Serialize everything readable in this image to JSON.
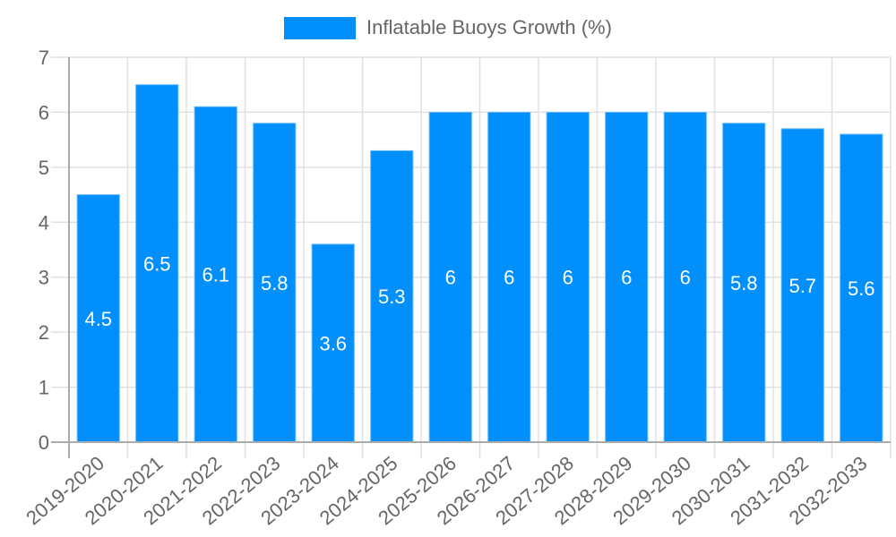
{
  "chart_data": {
    "type": "bar",
    "title": "",
    "xlabel": "",
    "ylabel": "",
    "ylim": [
      0,
      7
    ],
    "yticks": [
      0,
      1,
      2,
      3,
      4,
      5,
      6,
      7
    ],
    "grid": true,
    "legend_position": "top",
    "categories": [
      "2019-2020",
      "2020-2021",
      "2021-2022",
      "2022-2023",
      "2023-2024",
      "2024-2025",
      "2025-2026",
      "2026-2027",
      "2027-2028",
      "2028-2029",
      "2029-2030",
      "2030-2031",
      "2031-2032",
      "2032-2033"
    ],
    "series": [
      {
        "name": "Inflatable Buoys Growth (%)",
        "color": "#008ffb",
        "values": [
          4.5,
          6.5,
          6.1,
          5.8,
          3.6,
          5.3,
          6,
          6,
          6,
          6,
          6,
          5.8,
          5.7,
          5.6
        ],
        "data_labels": [
          "4.5",
          "6.5",
          "6.1",
          "5.8",
          "3.6",
          "5.3",
          "6",
          "6",
          "6",
          "6",
          "6",
          "5.8",
          "5.7",
          "5.6"
        ]
      }
    ]
  },
  "legend": {
    "label": "Inflatable Buoys Growth (%)",
    "color": "#008ffb"
  }
}
